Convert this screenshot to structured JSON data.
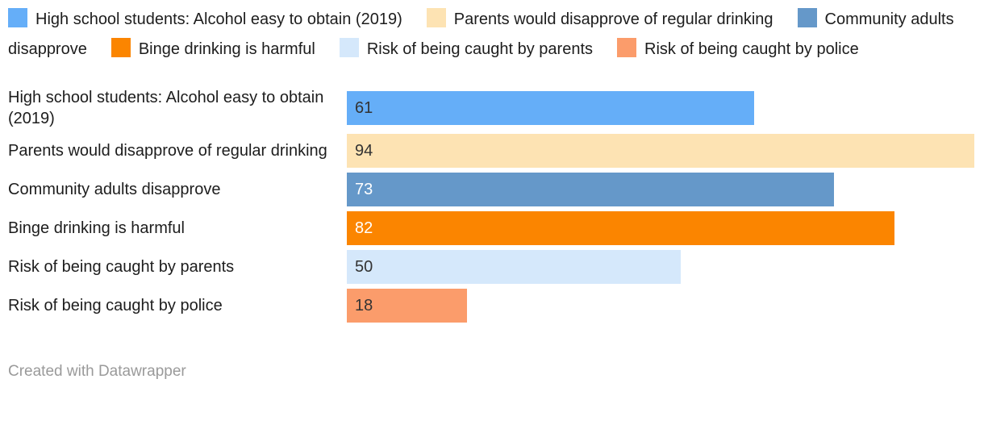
{
  "legend": {
    "items": [
      {
        "label": "High school students: Alcohol easy to obtain (2019)",
        "color": "#65aef8"
      },
      {
        "label": "Parents would disapprove of regular drinking",
        "color": "#fde3b3"
      },
      {
        "label": "Community adults disapprove",
        "color": "#6598c9"
      },
      {
        "label": "Binge drinking is harmful",
        "color": "#fb8500"
      },
      {
        "label": "Risk of being caught by parents",
        "color": "#d5e8fb"
      },
      {
        "label": "Risk of being caught by police",
        "color": "#fb9c6b"
      }
    ]
  },
  "chart_data": {
    "type": "bar",
    "orientation": "horizontal",
    "categories": [
      "High school students: Alcohol easy to obtain (2019)",
      "Parents would disapprove of regular drinking",
      "Community adults disapprove",
      "Binge drinking is harmful",
      "Risk of being caught by parents",
      "Risk of being caught by police"
    ],
    "values": [
      61,
      94,
      73,
      82,
      50,
      18
    ],
    "bar_colors": [
      "#65aef8",
      "#fde3b3",
      "#6598c9",
      "#fb8500",
      "#d5e8fb",
      "#fb9c6b"
    ],
    "value_text_colors": [
      "#333333",
      "#333333",
      "#ffffff",
      "#ffffff",
      "#333333",
      "#333333"
    ],
    "xlim": [
      0,
      94
    ],
    "value_labels_shown": true,
    "grid": false,
    "axis_shown": false,
    "legend_position": "top"
  },
  "footer": {
    "credit": "Created with Datawrapper"
  }
}
